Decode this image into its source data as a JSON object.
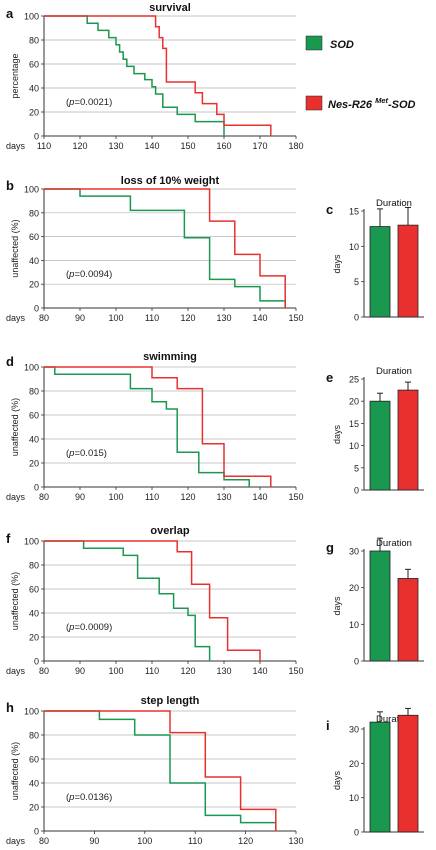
{
  "legend": {
    "position": "right of panel a",
    "items": [
      {
        "label": "SOD",
        "color": "#1a9850"
      },
      {
        "label_main": "Nes-R26 ",
        "label_sup": "Met",
        "label_tail": "-SOD",
        "color": "#e8312f"
      }
    ]
  },
  "chart_data": [
    {
      "id": "a",
      "panel_letter": "a",
      "type": "line",
      "title": "survival",
      "ylabel": "percentage",
      "xlabel": "days",
      "xlim": [
        110,
        180
      ],
      "ylim": [
        0,
        100
      ],
      "xticks": [
        110,
        120,
        130,
        140,
        150,
        160,
        170,
        180
      ],
      "yticks": [
        0,
        20,
        40,
        60,
        80,
        100
      ],
      "annotation_pre": "(",
      "annotation_p": "p",
      "annotation_post": "=0.0021)",
      "series": [
        {
          "name": "SOD",
          "color": "#1a9850",
          "x": [
            110,
            119,
            122,
            125,
            128,
            130,
            131,
            132,
            133,
            135,
            138,
            140,
            141,
            143,
            147,
            152,
            160
          ],
          "y": [
            100,
            100,
            94,
            88,
            82,
            76,
            70,
            64,
            58,
            52,
            47,
            41,
            35,
            24,
            18,
            12,
            0
          ]
        },
        {
          "name": "Nes-R26 Met-SOD",
          "color": "#e8312f",
          "x": [
            110,
            139,
            141,
            142,
            143,
            144,
            150,
            152,
            154,
            158,
            160,
            173
          ],
          "y": [
            100,
            100,
            91,
            82,
            73,
            45,
            45,
            36,
            27,
            18,
            9,
            0
          ]
        }
      ]
    },
    {
      "id": "b",
      "panel_letter": "b",
      "type": "line",
      "title": "loss of 10% weight",
      "ylabel": "unaffected (%)",
      "xlabel": "days",
      "xlim": [
        80,
        150
      ],
      "ylim": [
        0,
        100
      ],
      "xticks": [
        80,
        90,
        100,
        110,
        120,
        130,
        140,
        150
      ],
      "yticks": [
        0,
        20,
        40,
        60,
        80,
        100
      ],
      "annotation_pre": "(",
      "annotation_p": "p",
      "annotation_post": "=0.0094)",
      "series": [
        {
          "name": "SOD",
          "color": "#1a9850",
          "x": [
            80,
            90,
            104,
            119,
            126,
            133,
            140,
            147
          ],
          "y": [
            100,
            94,
            82,
            59,
            24,
            18,
            6,
            0
          ]
        },
        {
          "name": "Nes-R26 Met-SOD",
          "color": "#e8312f",
          "x": [
            80,
            126,
            133,
            140,
            147
          ],
          "y": [
            100,
            73,
            45,
            27,
            0
          ]
        }
      ]
    },
    {
      "id": "c",
      "panel_letter": "c",
      "type": "bar",
      "title": "Duration",
      "ylabel": "days",
      "ylim": [
        0,
        15
      ],
      "yticks": [
        0,
        5,
        10,
        15
      ],
      "values": [
        12.8,
        13.0
      ],
      "errors": [
        2.5,
        2.5
      ],
      "colors": [
        "#1a9850",
        "#e8312f"
      ]
    },
    {
      "id": "d",
      "panel_letter": "d",
      "type": "line",
      "title": "swimming",
      "ylabel": "unaffected (%)",
      "xlabel": "days",
      "xlim": [
        80,
        150
      ],
      "ylim": [
        0,
        100
      ],
      "xticks": [
        80,
        90,
        100,
        110,
        120,
        130,
        140,
        150
      ],
      "yticks": [
        0,
        20,
        40,
        60,
        80,
        100
      ],
      "annotation_pre": "(",
      "annotation_p": "p",
      "annotation_post": "=0.015)",
      "series": [
        {
          "name": "SOD",
          "color": "#1a9850",
          "x": [
            80,
            83,
            104,
            110,
            114,
            117,
            123,
            130,
            137
          ],
          "y": [
            100,
            94,
            82,
            71,
            65,
            29,
            12,
            6,
            0
          ]
        },
        {
          "name": "Nes-R26 Met-SOD",
          "color": "#e8312f",
          "x": [
            80,
            110,
            117,
            124,
            130,
            143
          ],
          "y": [
            100,
            91,
            82,
            36,
            9,
            0
          ]
        }
      ]
    },
    {
      "id": "e",
      "panel_letter": "e",
      "type": "bar",
      "title": "Duration",
      "ylabel": "days",
      "ylim": [
        0,
        25
      ],
      "yticks": [
        0,
        5,
        10,
        15,
        20,
        25
      ],
      "values": [
        20.0,
        22.5
      ],
      "errors": [
        1.8,
        1.8
      ],
      "colors": [
        "#1a9850",
        "#e8312f"
      ]
    },
    {
      "id": "f",
      "panel_letter": "f",
      "type": "line",
      "title": "overlap",
      "ylabel": "unaffected (%)",
      "xlabel": "days",
      "xlim": [
        80,
        150
      ],
      "ylim": [
        0,
        100
      ],
      "xticks": [
        80,
        90,
        100,
        110,
        120,
        130,
        140,
        150
      ],
      "yticks": [
        0,
        20,
        40,
        60,
        80,
        100
      ],
      "annotation_pre": "(",
      "annotation_p": "p",
      "annotation_post": "=0.0009)",
      "series": [
        {
          "name": "SOD",
          "color": "#1a9850",
          "x": [
            80,
            91,
            102,
            106,
            112,
            116,
            120,
            122,
            126
          ],
          "y": [
            100,
            94,
            88,
            69,
            56,
            44,
            38,
            12,
            0
          ]
        },
        {
          "name": "Nes-R26 Met-SOD",
          "color": "#e8312f",
          "x": [
            80,
            117,
            121,
            126,
            131,
            140
          ],
          "y": [
            100,
            91,
            64,
            36,
            9,
            0
          ]
        }
      ]
    },
    {
      "id": "g",
      "panel_letter": "g",
      "type": "bar",
      "title": "Duration",
      "ylabel": "days",
      "ylim": [
        0,
        30
      ],
      "yticks": [
        0,
        10,
        20,
        30
      ],
      "values": [
        30.0,
        22.5
      ],
      "errors": [
        3.5,
        2.5
      ],
      "colors": [
        "#1a9850",
        "#e8312f"
      ]
    },
    {
      "id": "h",
      "panel_letter": "h",
      "type": "line",
      "title": "step length",
      "ylabel": "unaffected (%)",
      "xlabel": "days",
      "xlim": [
        80,
        130
      ],
      "ylim": [
        0,
        100
      ],
      "xticks": [
        80,
        90,
        100,
        110,
        120,
        130
      ],
      "yticks": [
        0,
        20,
        40,
        60,
        80,
        100
      ],
      "annotation_pre": "(",
      "annotation_p": "p",
      "annotation_post": "=0.0136)",
      "series": [
        {
          "name": "SOD",
          "color": "#1a9850",
          "x": [
            80,
            91,
            98,
            105,
            112,
            119,
            126
          ],
          "y": [
            100,
            93,
            80,
            40,
            13,
            7,
            0
          ]
        },
        {
          "name": "Nes-R26 Met-SOD",
          "color": "#e8312f",
          "x": [
            80,
            105,
            112,
            119,
            126
          ],
          "y": [
            100,
            82,
            45,
            18,
            0
          ]
        }
      ]
    },
    {
      "id": "i",
      "panel_letter": "i",
      "type": "bar",
      "title": "Duration",
      "ylabel": "days",
      "ylim": [
        0,
        30
      ],
      "yticks": [
        0,
        10,
        20,
        30
      ],
      "values": [
        32.0,
        34.0
      ],
      "errors": [
        3.0,
        2.0
      ],
      "colors": [
        "#1a9850",
        "#e8312f"
      ]
    }
  ]
}
